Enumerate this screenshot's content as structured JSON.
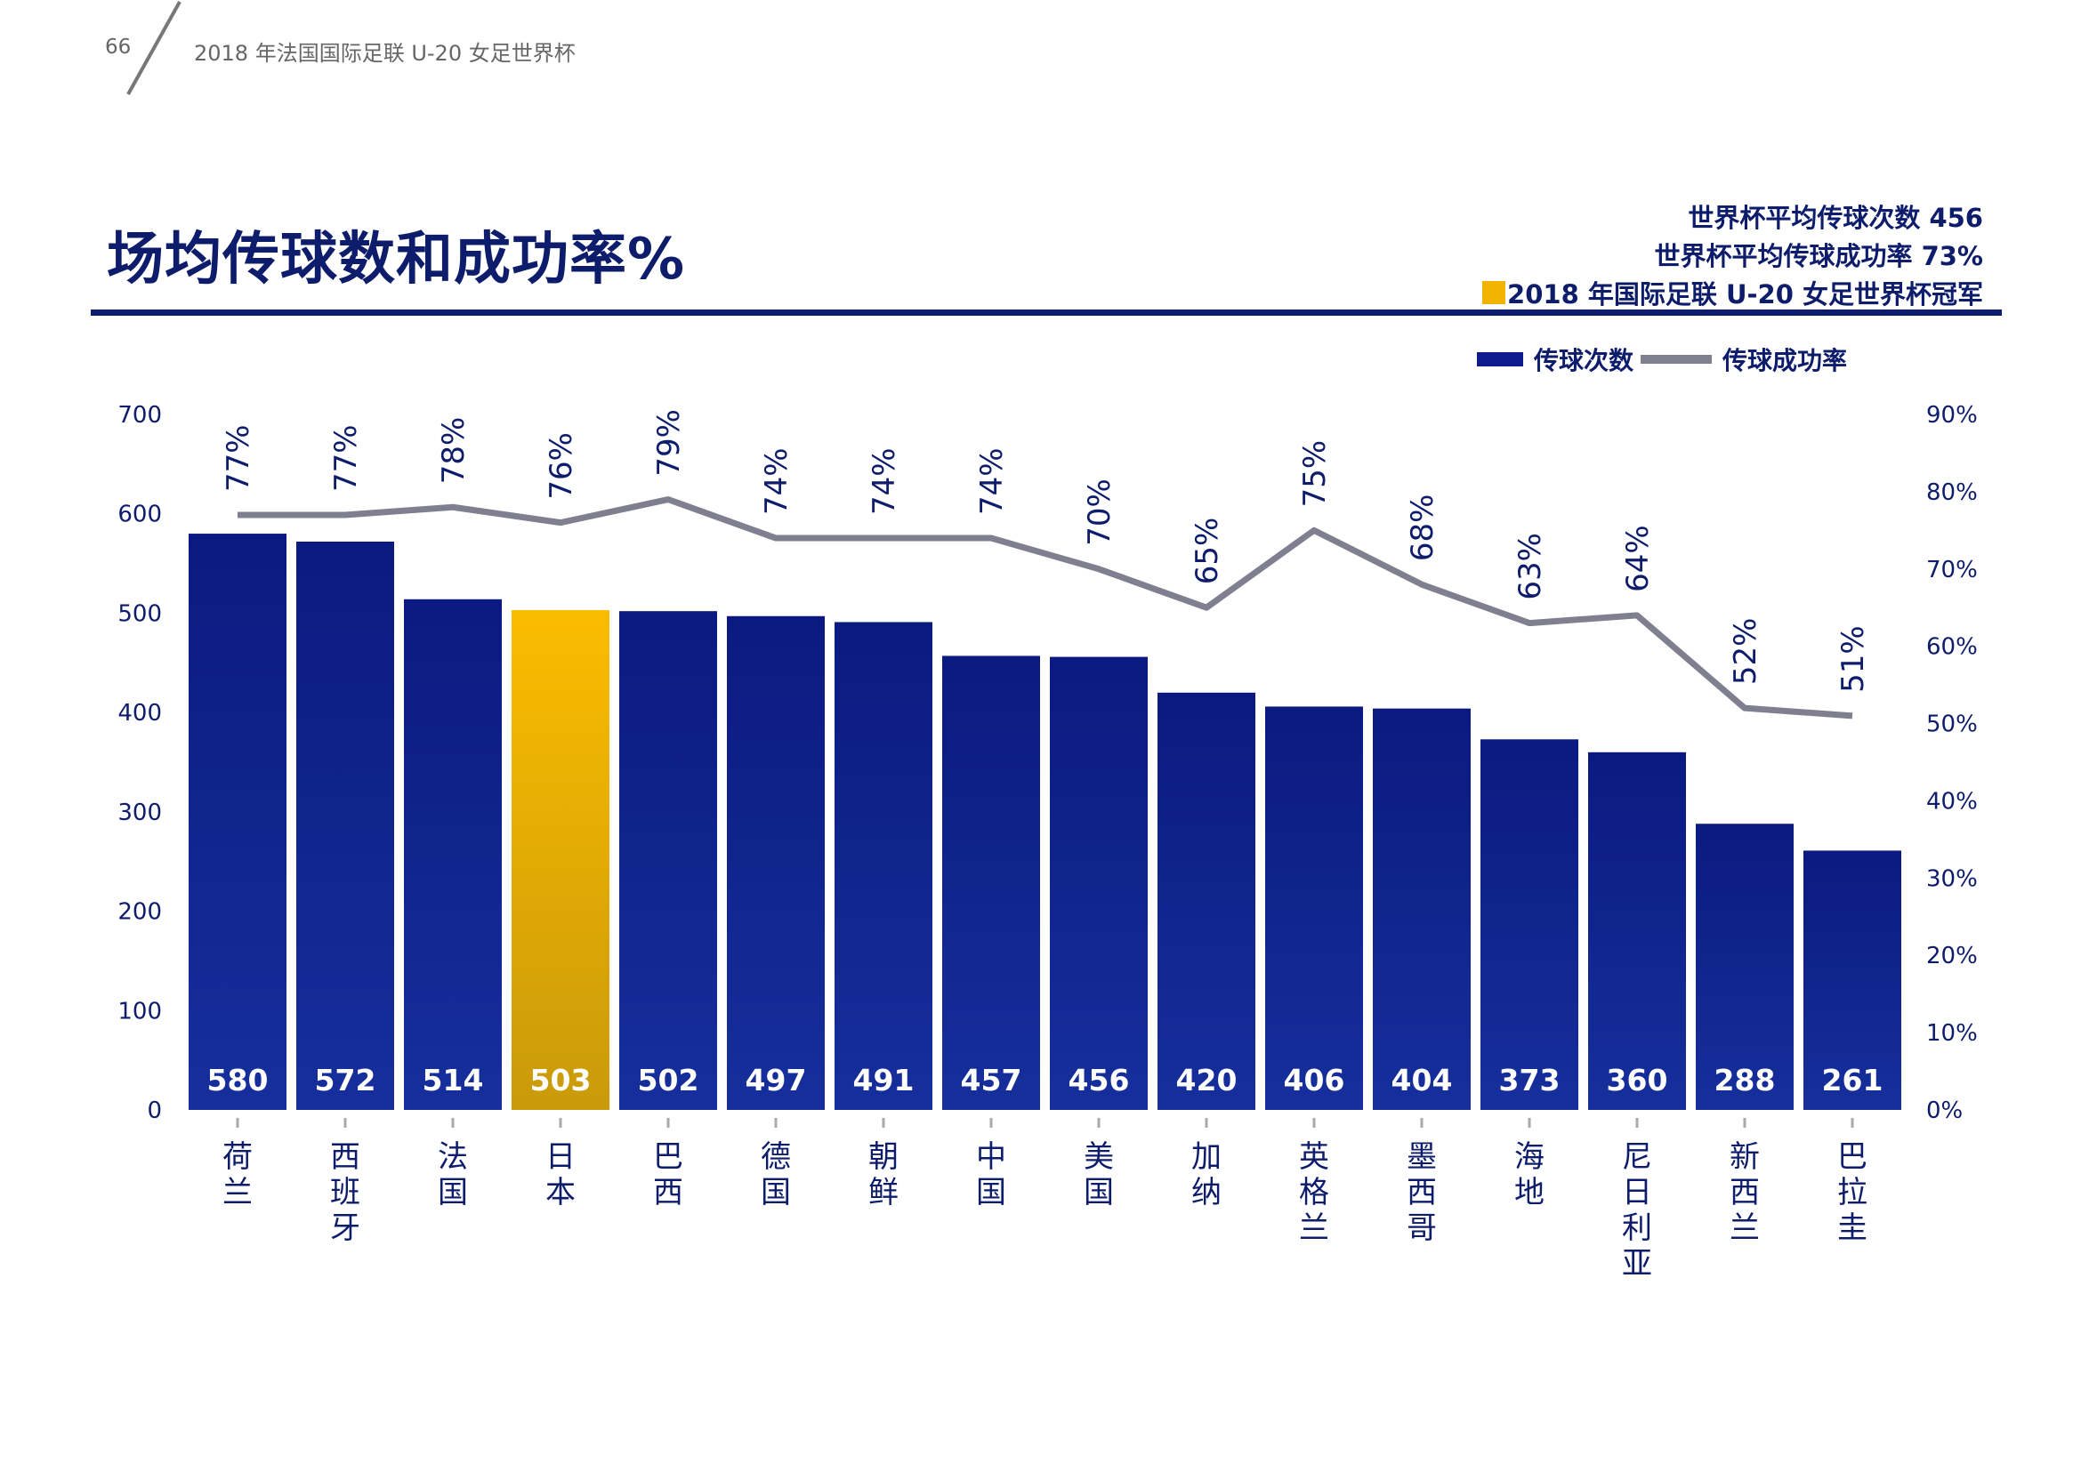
{
  "header": {
    "page_number": "66",
    "publication": "2018 年法国国际足联 U-20 女足世界杯"
  },
  "title": "场均传球数和成功率%",
  "info": {
    "avg_passes": "世界杯平均传球次数  456",
    "avg_success": "世界杯平均传球成功率  73%",
    "champion": "2018 年国际足联 U-20 女足世界杯冠军"
  },
  "legend": {
    "bars": "传球次数",
    "line": "传球成功率"
  },
  "colors": {
    "bar_top": "#0a1a80",
    "bar_bottom": "#162f9c",
    "highlight_top": "#fbbc00",
    "highlight_bottom": "#c99a0a",
    "line": "#7f7f90",
    "text": "#0d1c6b"
  },
  "chart_data": {
    "type": "bar",
    "categories": [
      "荷兰",
      "西班牙",
      "法国",
      "日本",
      "巴西",
      "德国",
      "朝鲜",
      "中国",
      "美国",
      "加纳",
      "英格兰",
      "墨西哥",
      "海地",
      "尼日利亚",
      "新西兰",
      "巴拉圭"
    ],
    "series": [
      {
        "name": "传球次数",
        "type": "bar",
        "axis": "left",
        "values": [
          580,
          572,
          514,
          503,
          502,
          497,
          491,
          457,
          456,
          420,
          406,
          404,
          373,
          360,
          288,
          261
        ]
      },
      {
        "name": "传球成功率",
        "type": "line",
        "axis": "right",
        "values": [
          77,
          77,
          78,
          76,
          79,
          74,
          74,
          74,
          70,
          65,
          75,
          68,
          63,
          64,
          52,
          51
        ]
      }
    ],
    "bar_labels": [
      "580",
      "572",
      "514",
      "503",
      "502",
      "497",
      "491",
      "457",
      "456",
      "420",
      "406",
      "404",
      "373",
      "360",
      "288",
      "261"
    ],
    "line_labels": [
      "77%",
      "77%",
      "78%",
      "76%",
      "79%",
      "74%",
      "74%",
      "74%",
      "70%",
      "65%",
      "75%",
      "68%",
      "63%",
      "64%",
      "52%",
      "51%"
    ],
    "highlight_index": 3,
    "y_left": {
      "min": 0,
      "max": 700,
      "ticks": [
        "0",
        "100",
        "200",
        "300",
        "400",
        "500",
        "600",
        "700"
      ]
    },
    "y_right": {
      "min": 0,
      "max": 90,
      "ticks": [
        "0%",
        "10%",
        "20%",
        "30%",
        "40%",
        "50%",
        "60%",
        "70%",
        "80%",
        "90%"
      ]
    },
    "grid": false,
    "legend_position": "top-right"
  }
}
